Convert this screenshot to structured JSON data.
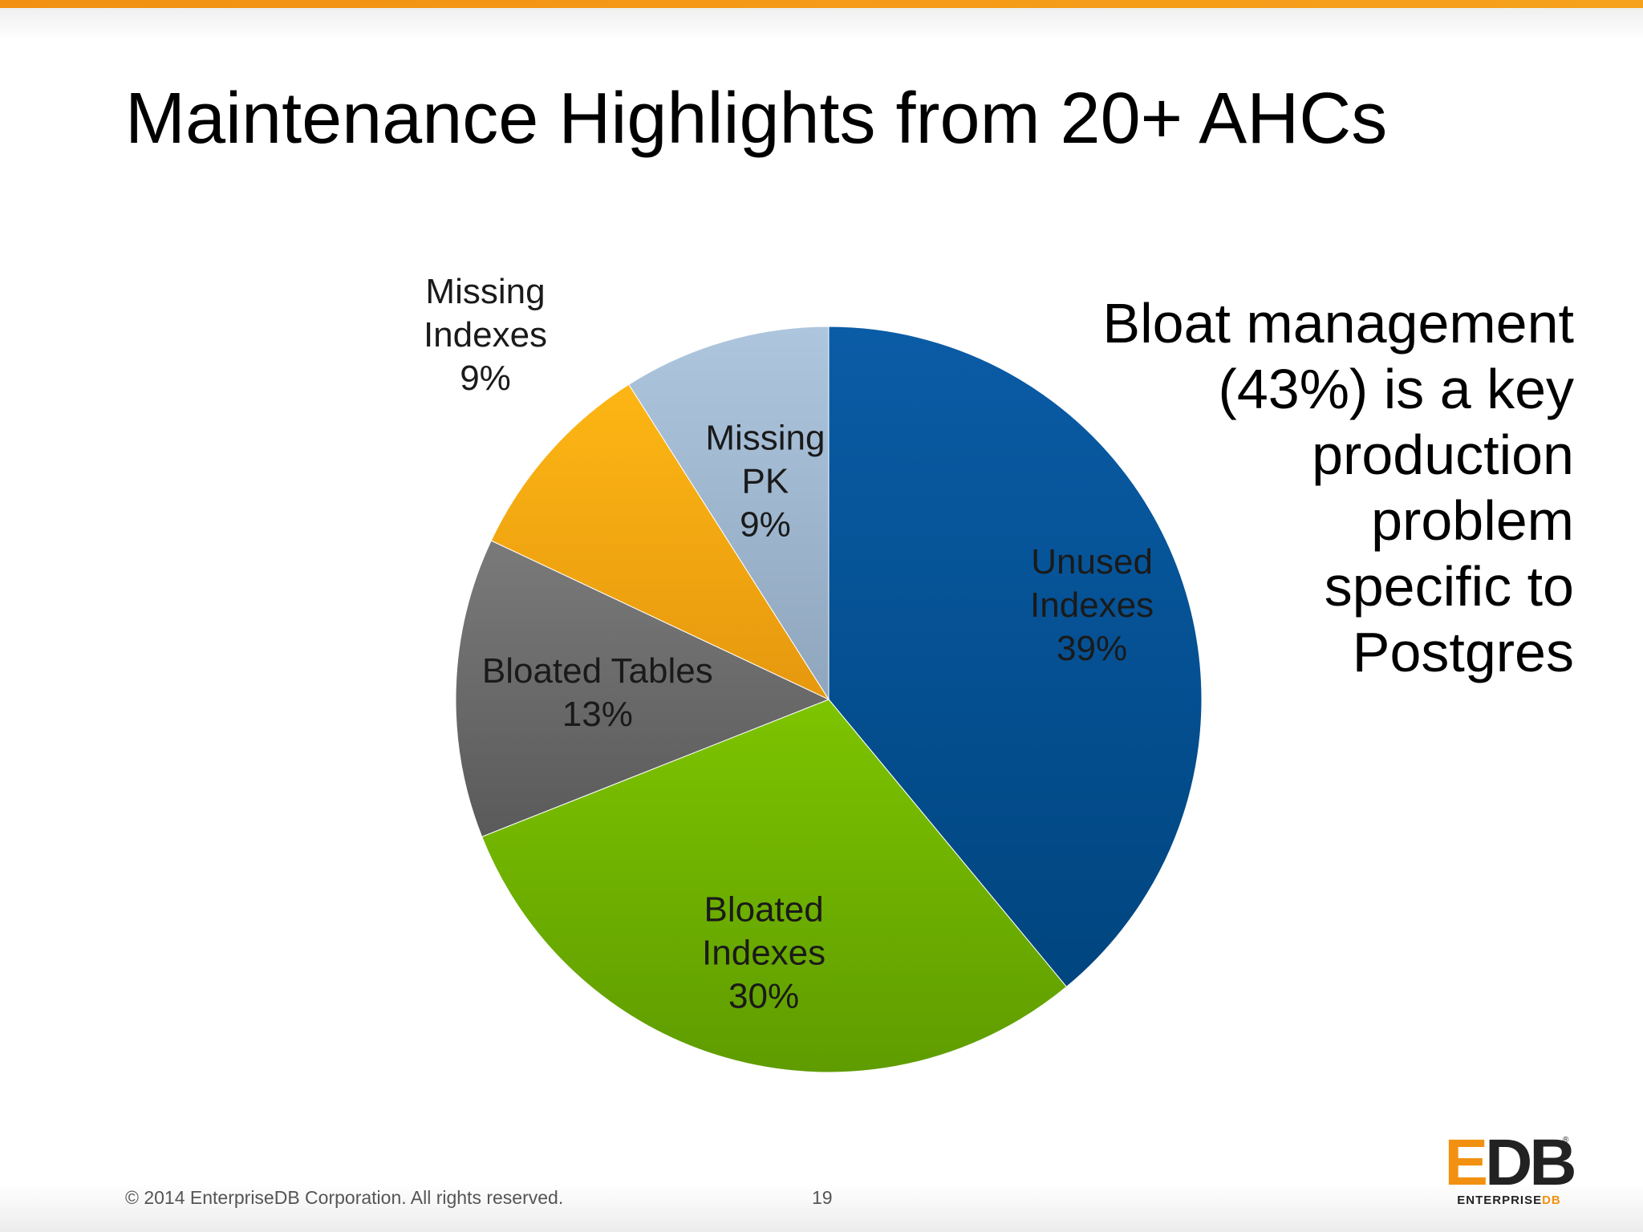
{
  "slide": {
    "title": "Maintenance Highlights from 20+ AHCs",
    "callout_lines": [
      "Bloat management",
      "(43%) is a key",
      "production",
      "problem",
      "specific to",
      "Postgres"
    ],
    "copyright": "© 2014 EnterpriseDB Corporation. All rights reserved.",
    "page_number": "19",
    "logo": {
      "mark_e": "E",
      "mark_db": "DB",
      "reg": "®",
      "sub_main": "ENTERPRISE",
      "sub_accent": "DB"
    }
  },
  "chart_data": {
    "type": "pie",
    "slices": [
      {
        "lines": [
          "Unused",
          "Indexes",
          "39%"
        ],
        "value": 39,
        "color_top": "#0a5ca6",
        "color_bottom": "#00457f"
      },
      {
        "lines": [
          "Bloated",
          "Indexes",
          "30%"
        ],
        "value": 30,
        "color_top": "#7dc400",
        "color_bottom": "#5f9c00"
      },
      {
        "lines": [
          "Bloated Tables",
          "13%"
        ],
        "value": 13,
        "color_top": "#7a7a7a",
        "color_bottom": "#5a5a5a"
      },
      {
        "lines": [
          "Missing",
          "Indexes",
          "9%"
        ],
        "value": 9,
        "color_top": "#fdb614",
        "color_bottom": "#e6980e"
      },
      {
        "lines": [
          "Missing",
          "PK",
          "9%"
        ],
        "value": 9,
        "color_top": "#adc6de",
        "color_bottom": "#8fa6bd"
      }
    ]
  }
}
